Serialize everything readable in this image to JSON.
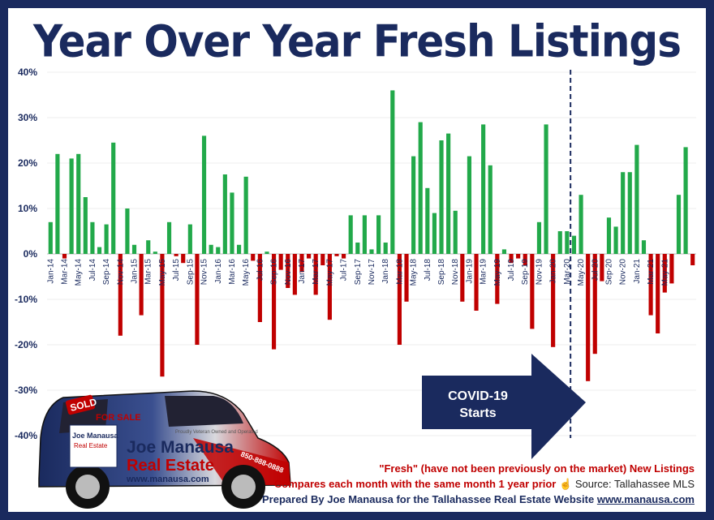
{
  "title": "Year Over Year Fresh Listings",
  "covid_label": [
    "COVID-19",
    "Starts"
  ],
  "notes": {
    "line1": "\"Fresh\" (have not been previously on the market) New Listings",
    "line2": "Compares each month with the same month 1 year prior",
    "source": "Source: Tallahassee MLS",
    "line3_prefix": "Prepared By Joe Manausa for the Tallahassee Real Estate Website",
    "line3_url": "www.manausa.com"
  },
  "car_text": {
    "sold": "SOLD",
    "for_sale": "FOR SALE",
    "brand_line1": "Joe Manausa",
    "brand_line2": "Real Estate",
    "website": "www.manausa.com",
    "phone": "850-888-0888",
    "tagline": "Proudly Veteran Owned and Operated"
  },
  "colors": {
    "frame": "#1a2a5e",
    "positive": "#22a94a",
    "negative": "#c00000",
    "arrow": "#1a2a5e"
  },
  "chart_data": {
    "type": "bar",
    "title": "Year Over Year Fresh Listings",
    "ylim": [
      -40,
      40
    ],
    "yticks": [
      40,
      30,
      20,
      10,
      0,
      -10,
      -20,
      -30,
      -40
    ],
    "ytick_labels": [
      "40%",
      "30%",
      "20%",
      "10%",
      "0%",
      "-10%",
      "-20%",
      "-30%",
      "-40%"
    ],
    "x_start": "Jan-14",
    "x_labels": [
      "Jan-14",
      "Mar-14",
      "May-14",
      "Jul-14",
      "Sep-14",
      "Nov-14",
      "Jan-15",
      "Mar-15",
      "May-15",
      "Jul-15",
      "Sep-15",
      "Nov-15",
      "Jan-16",
      "Mar-16",
      "May-16",
      "Jul-16",
      "Sep-16",
      "Nov-16",
      "Jan-17",
      "Mar-17",
      "May-17",
      "Jul-17",
      "Sep-17",
      "Nov-17",
      "Jan-18",
      "Mar-18",
      "May-18",
      "Jul-18",
      "Sep-18",
      "Nov-18",
      "Jan-19",
      "Mar-19",
      "May-19",
      "Jul-19",
      "Sep-19",
      "Nov-19",
      "Jan-20",
      "Mar-20",
      "May-20",
      "Jul-20",
      "Sep-20",
      "Nov-20",
      "Jan-21",
      "Mar-21",
      "May-21"
    ],
    "values": [
      7,
      22,
      -1,
      21,
      22,
      12.5,
      7,
      1.5,
      6.5,
      24.5,
      -18,
      10,
      2,
      -13.5,
      3,
      0.5,
      -27,
      7,
      -0.5,
      -2,
      6.5,
      -20,
      26,
      2,
      1.5,
      17.5,
      13.5,
      2,
      17,
      -1.5,
      -15,
      0.5,
      -21,
      -3.5,
      -7.5,
      -9,
      -4,
      -1,
      -9,
      -2.5,
      -14.5,
      -0.5,
      -1,
      8.5,
      2.5,
      8.5,
      1,
      8.5,
      2.5,
      36,
      -20,
      -10.5,
      21.5,
      29,
      14.5,
      9,
      25,
      26.5,
      9.5,
      -10.5,
      21.5,
      -12.5,
      28.5,
      19.5,
      -11,
      1,
      -2,
      -1,
      -2.5,
      -16.5,
      7,
      28.5,
      -20.5,
      5,
      5,
      4,
      13,
      -28,
      -22,
      -6,
      8,
      6,
      18,
      18,
      24,
      3,
      -13.5,
      -17.5,
      -8.5,
      -6.5,
      13,
      23.5,
      -2.5
    ],
    "covid_marker": "Mar-20"
  }
}
